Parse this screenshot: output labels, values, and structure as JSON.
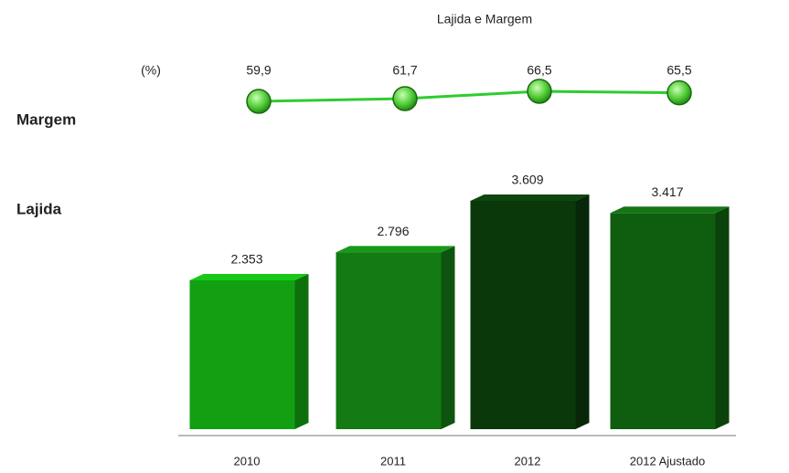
{
  "chart_data": {
    "type": "bar",
    "title": "Lajida e Margem",
    "y2_unit_label": "(%)",
    "categories": [
      "2010",
      "2011",
      "2012",
      "2012 Ajustado"
    ],
    "series": [
      {
        "name": "Lajida",
        "type": "bar",
        "colors": [
          "#12a012",
          "#137a14",
          "#0a380b",
          "#0f5e10"
        ],
        "values": [
          2353,
          2796,
          3609,
          3417
        ],
        "value_labels": [
          "2.353",
          "2.796",
          "3.609",
          "3.417"
        ]
      },
      {
        "name": "Margem",
        "type": "line",
        "axis": "y2",
        "color": "#2ecc2e",
        "values": [
          59.9,
          61.7,
          66.5,
          65.5
        ],
        "value_labels": [
          "59,9",
          "61,7",
          "66,5",
          "65,5"
        ]
      }
    ]
  }
}
